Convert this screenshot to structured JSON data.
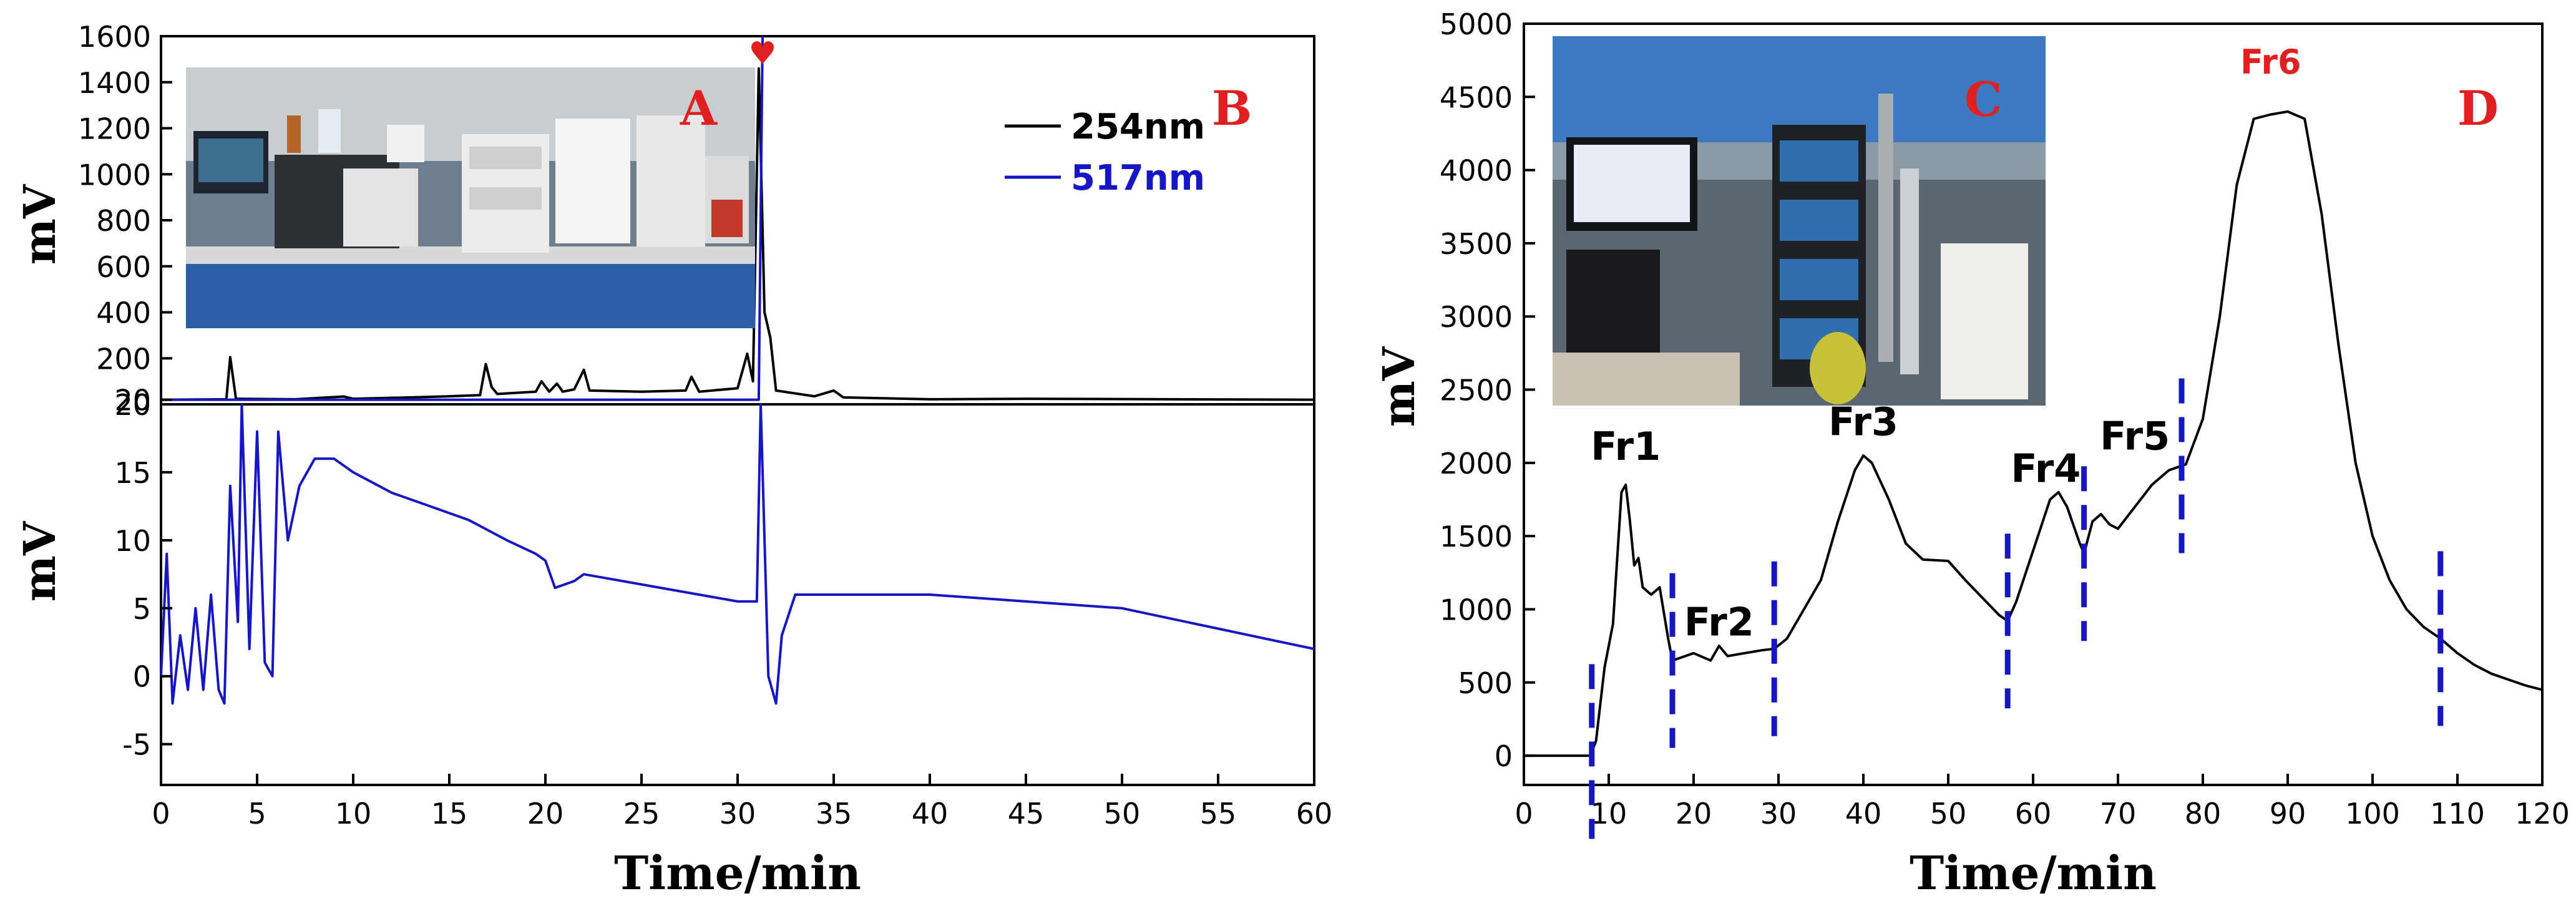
{
  "panel_labels": {
    "a": "A",
    "b": "B",
    "c": "C",
    "d": "D"
  },
  "chart_data": [
    {
      "id": "top-left",
      "type": "line",
      "ylabel": "mV",
      "xlim": [
        0,
        60
      ],
      "ylim": [
        0,
        1600
      ],
      "yticks": [
        20,
        200,
        400,
        600,
        800,
        1000,
        1200,
        1400,
        1600
      ],
      "grid": false,
      "legend": "top-right",
      "annotations": [
        {
          "text": "♥",
          "x": 31.3,
          "y": 1480
        }
      ],
      "series": [
        {
          "name": "254nm",
          "color": "#000000",
          "points": [
            [
              0,
              20
            ],
            [
              3.4,
              22
            ],
            [
              3.6,
              205
            ],
            [
              3.9,
              24
            ],
            [
              7,
              22
            ],
            [
              9.5,
              34
            ],
            [
              10,
              24
            ],
            [
              13,
              30
            ],
            [
              15,
              35
            ],
            [
              16.6,
              40
            ],
            [
              16.9,
              175
            ],
            [
              17.2,
              75
            ],
            [
              17.5,
              45
            ],
            [
              19.5,
              55
            ],
            [
              19.8,
              100
            ],
            [
              20.2,
              55
            ],
            [
              20.6,
              90
            ],
            [
              20.9,
              55
            ],
            [
              21.5,
              65
            ],
            [
              22,
              150
            ],
            [
              22.3,
              60
            ],
            [
              25,
              55
            ],
            [
              27.3,
              60
            ],
            [
              27.6,
              120
            ],
            [
              28,
              55
            ],
            [
              30,
              70
            ],
            [
              30.5,
              220
            ],
            [
              30.8,
              100
            ],
            [
              31.1,
              1460
            ],
            [
              31.4,
              400
            ],
            [
              31.7,
              290
            ],
            [
              32,
              60
            ],
            [
              34,
              35
            ],
            [
              35,
              60
            ],
            [
              35.5,
              30
            ],
            [
              40,
              22
            ],
            [
              45,
              24
            ],
            [
              60,
              20
            ]
          ]
        },
        {
          "name": "517nm",
          "color": "#1616c4",
          "points": [
            [
              0,
              20
            ],
            [
              31.1,
              20
            ],
            [
              31.3,
              1600
            ]
          ]
        }
      ]
    },
    {
      "id": "bottom-left",
      "type": "line",
      "xlabel": "Time/min",
      "ylabel": "mV",
      "xlim": [
        0,
        60
      ],
      "ylim": [
        -8,
        20
      ],
      "yticks": [
        -5,
        0,
        5,
        10,
        15,
        20
      ],
      "xticks": [
        0,
        5,
        10,
        15,
        20,
        25,
        30,
        35,
        40,
        45,
        50,
        55,
        60
      ],
      "grid": false,
      "series": [
        {
          "name": "517nm",
          "color": "#1616c4",
          "points": [
            [
              0,
              0
            ],
            [
              0.3,
              9
            ],
            [
              0.6,
              -2
            ],
            [
              1,
              3
            ],
            [
              1.4,
              -1
            ],
            [
              1.8,
              5
            ],
            [
              2.2,
              -1
            ],
            [
              2.6,
              6
            ],
            [
              3,
              -1
            ],
            [
              3.3,
              -2
            ],
            [
              3.6,
              14
            ],
            [
              4,
              4
            ],
            [
              4.2,
              20
            ],
            [
              4.6,
              2
            ],
            [
              5,
              18
            ],
            [
              5.4,
              1
            ],
            [
              5.8,
              0
            ],
            [
              6.1,
              18
            ],
            [
              6.6,
              10
            ],
            [
              7.2,
              14
            ],
            [
              8,
              16
            ],
            [
              9,
              16
            ],
            [
              10,
              15
            ],
            [
              12,
              13.5
            ],
            [
              14,
              12.5
            ],
            [
              16,
              11.5
            ],
            [
              18,
              10
            ],
            [
              19.5,
              9
            ],
            [
              20,
              8.5
            ],
            [
              20.5,
              6.5
            ],
            [
              21.5,
              7
            ],
            [
              22,
              7.5
            ],
            [
              24,
              7
            ],
            [
              26,
              6.5
            ],
            [
              28,
              6
            ],
            [
              30,
              5.5
            ],
            [
              31,
              5.5
            ],
            [
              31.2,
              20
            ],
            [
              31.6,
              0
            ],
            [
              32,
              -2
            ],
            [
              32.3,
              3
            ],
            [
              33,
              6
            ],
            [
              35,
              6
            ],
            [
              40,
              6
            ],
            [
              45,
              5.5
            ],
            [
              50,
              5
            ],
            [
              55,
              3.5
            ],
            [
              60,
              2
            ]
          ]
        }
      ]
    },
    {
      "id": "right",
      "type": "line",
      "xlabel": "Time/min",
      "ylabel": "mV",
      "xlim": [
        0,
        120
      ],
      "ylim": [
        -200,
        5000
      ],
      "yticks": [
        0,
        500,
        1000,
        1500,
        2000,
        2500,
        3000,
        3500,
        4000,
        4500,
        5000
      ],
      "xticks": [
        0,
        10,
        20,
        30,
        40,
        50,
        60,
        70,
        80,
        90,
        100,
        110,
        120
      ],
      "grid": false,
      "fraction_boundaries": [
        8,
        17.5,
        29.5,
        57,
        66,
        77.5,
        108
      ],
      "annotations": [
        {
          "text": "Fr1",
          "x": 12,
          "y": 2020
        },
        {
          "text": "Fr2",
          "x": 23,
          "y": 820
        },
        {
          "text": "Fr3",
          "x": 40,
          "y": 2190
        },
        {
          "text": "Fr4",
          "x": 61.5,
          "y": 1870
        },
        {
          "text": "Fr5",
          "x": 72,
          "y": 2090
        },
        {
          "text": "Fr6",
          "x": 88,
          "y": 4660
        }
      ],
      "series": [
        {
          "color": "#000000",
          "points": [
            [
              0,
              0
            ],
            [
              7.8,
              0
            ],
            [
              8.5,
              100
            ],
            [
              9.5,
              600
            ],
            [
              10.5,
              900
            ],
            [
              11.5,
              1800
            ],
            [
              12,
              1850
            ],
            [
              12.5,
              1600
            ],
            [
              13,
              1300
            ],
            [
              13.5,
              1350
            ],
            [
              14,
              1150
            ],
            [
              15,
              1100
            ],
            [
              16,
              1150
            ],
            [
              17,
              800
            ],
            [
              17.5,
              650
            ],
            [
              20,
              700
            ],
            [
              22,
              650
            ],
            [
              23,
              750
            ],
            [
              24,
              680
            ],
            [
              26,
              700
            ],
            [
              28,
              720
            ],
            [
              29.5,
              730
            ],
            [
              31,
              800
            ],
            [
              33,
              1000
            ],
            [
              35,
              1200
            ],
            [
              37,
              1600
            ],
            [
              39,
              1950
            ],
            [
              40,
              2050
            ],
            [
              41,
              2000
            ],
            [
              43,
              1750
            ],
            [
              45,
              1450
            ],
            [
              47,
              1340
            ],
            [
              50,
              1330
            ],
            [
              52,
              1200
            ],
            [
              54,
              1080
            ],
            [
              56,
              960
            ],
            [
              57,
              920
            ],
            [
              58,
              1050
            ],
            [
              60,
              1400
            ],
            [
              62,
              1750
            ],
            [
              63,
              1800
            ],
            [
              64,
              1700
            ],
            [
              65.5,
              1450
            ],
            [
              66,
              1380
            ],
            [
              67,
              1600
            ],
            [
              68,
              1650
            ],
            [
              69,
              1580
            ],
            [
              70,
              1550
            ],
            [
              72,
              1700
            ],
            [
              74,
              1850
            ],
            [
              76,
              1950
            ],
            [
              78,
              1990
            ],
            [
              80,
              2300
            ],
            [
              82,
              3000
            ],
            [
              84,
              3900
            ],
            [
              86,
              4350
            ],
            [
              88,
              4380
            ],
            [
              90,
              4400
            ],
            [
              92,
              4350
            ],
            [
              94,
              3700
            ],
            [
              96,
              2800
            ],
            [
              98,
              2000
            ],
            [
              100,
              1500
            ],
            [
              102,
              1200
            ],
            [
              104,
              1000
            ],
            [
              106,
              880
            ],
            [
              108,
              800
            ],
            [
              110,
              700
            ],
            [
              112,
              620
            ],
            [
              114,
              560
            ],
            [
              116,
              520
            ],
            [
              118,
              480
            ],
            [
              120,
              450
            ]
          ]
        }
      ]
    }
  ]
}
